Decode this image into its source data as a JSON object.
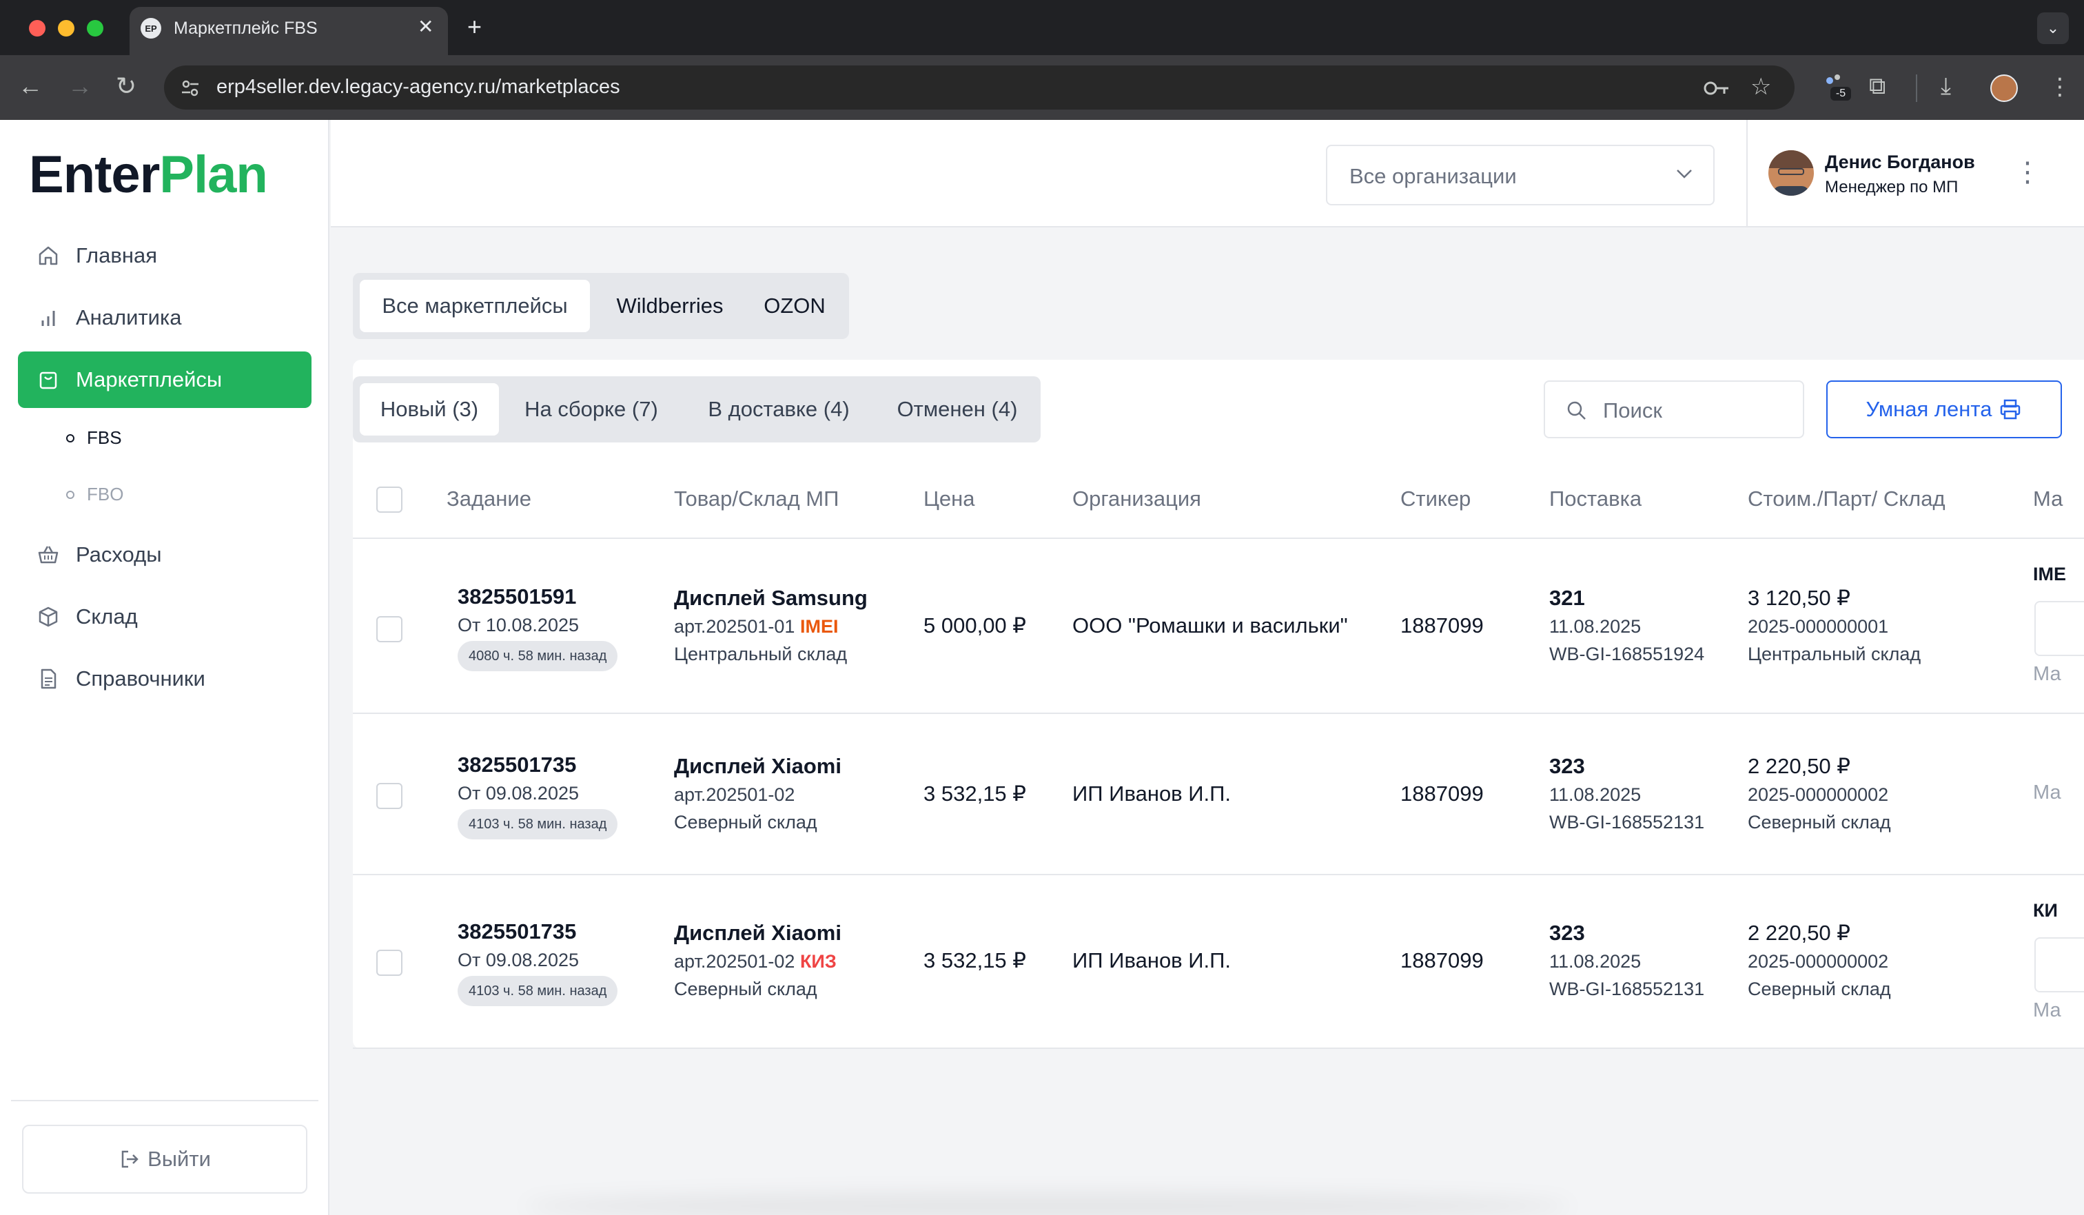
{
  "browser": {
    "tab_title": "Маркетплейс FBS",
    "favicon_text": "EP",
    "url": "erp4seller.dev.legacy-agency.ru/marketplaces",
    "extension_badge": "-5"
  },
  "sidebar": {
    "logo_enter": "Enter",
    "logo_plan": "Plan",
    "items": [
      {
        "label": "Главная",
        "icon": "home-icon"
      },
      {
        "label": "Аналитика",
        "icon": "bar-chart-icon"
      },
      {
        "label": "Маркетплейсы",
        "icon": "shopping-bag-icon",
        "active": true
      },
      {
        "label": "Расходы",
        "icon": "basket-icon"
      },
      {
        "label": "Склад",
        "icon": "box-icon"
      },
      {
        "label": "Справочники",
        "icon": "document-icon"
      }
    ],
    "sub_items": [
      {
        "label": "FBS",
        "active": true
      },
      {
        "label": "FBO",
        "active": false
      }
    ],
    "logout_label": "Выйти"
  },
  "header": {
    "org_placeholder": "Все организации",
    "user_name": "Денис Богданов",
    "user_role": "Менеджер по МП"
  },
  "marketplace_tabs": [
    "Все маркетплейсы",
    "Wildberries",
    "OZON"
  ],
  "status_tabs": [
    "Новый (3)",
    "На сборке (7)",
    "В доставке (4)",
    "Отменен (4)"
  ],
  "search_placeholder": "Поиск",
  "smart_button_label": "Умная лента",
  "table": {
    "headers": [
      "Задание",
      "Товар/Склад МП",
      "Цена",
      "Организация",
      "Стикер",
      "Поставка",
      "Стоим./Парт/ Склад",
      "Ма"
    ],
    "rows": [
      {
        "task_id": "3825501591",
        "task_date": "От 10.08.2025",
        "elapsed": "4080 ч. 58 мин. назад",
        "product": "Дисплей Samsung",
        "sku": "арт.202501-01",
        "sku_tag": "IMEI",
        "warehouse": "Центральный склад",
        "price": "5 000,00 ₽",
        "organization": "ООО \"Ромашки и васильки\"",
        "sticker": "1887099",
        "supply_num": "321",
        "supply_date": "11.08.2025",
        "supply_code": "WB-GI-168551924",
        "cost": "3 120,50 ₽",
        "batch": "2025-000000001",
        "cost_warehouse": "Центральный склад",
        "edge_label": "IME",
        "edge_sub": "Ма"
      },
      {
        "task_id": "3825501735",
        "task_date": "От 09.08.2025",
        "elapsed": "4103 ч. 58 мин. назад",
        "product": "Дисплей Xiaomi",
        "sku": "арт.202501-02",
        "sku_tag": "",
        "warehouse": "Северный склад",
        "price": "3 532,15 ₽",
        "organization": "ИП Иванов И.П.",
        "sticker": "1887099",
        "supply_num": "323",
        "supply_date": "11.08.2025",
        "supply_code": "WB-GI-168552131",
        "cost": "2 220,50 ₽",
        "batch": "2025-000000002",
        "cost_warehouse": "Северный склад",
        "edge_label": "",
        "edge_sub": "Ма"
      },
      {
        "task_id": "3825501735",
        "task_date": "От 09.08.2025",
        "elapsed": "4103 ч. 58 мин. назад",
        "product": "Дисплей Xiaomi",
        "sku": "арт.202501-02",
        "sku_tag": "КИЗ",
        "warehouse": "Северный склад",
        "price": "3 532,15 ₽",
        "organization": "ИП Иванов И.П.",
        "sticker": "1887099",
        "supply_num": "323",
        "supply_date": "11.08.2025",
        "supply_code": "WB-GI-168552131",
        "cost": "2 220,50 ₽",
        "batch": "2025-000000002",
        "cost_warehouse": "Северный склад",
        "edge_label": "КИ",
        "edge_sub": "Ма"
      }
    ]
  },
  "colors": {
    "brand_green": "#22b35d",
    "accent_blue": "#2563eb",
    "imei_orange": "#ea580c",
    "kiz_red": "#ef4444"
  }
}
